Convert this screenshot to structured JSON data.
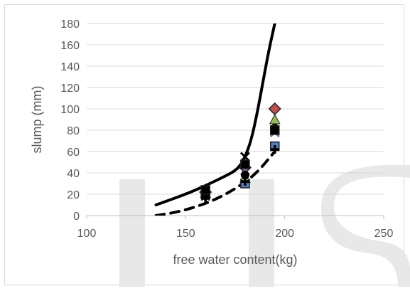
{
  "chart_data": {
    "type": "scatter",
    "title": "",
    "xlabel": "free water content(kg)",
    "ylabel": "slump (mm)",
    "xlim": [
      100,
      250
    ],
    "ylim": [
      0,
      180
    ],
    "x_ticks": [
      "100",
      "150",
      "200",
      "250"
    ],
    "y_ticks": [
      "0",
      "20",
      "40",
      "60",
      "80",
      "100",
      "120",
      "140",
      "160",
      "180"
    ],
    "grid": "horizontal",
    "legend": "none",
    "lines": [
      {
        "style": "solid",
        "color": "#000000",
        "points": [
          [
            135,
            10
          ],
          [
            150,
            20
          ],
          [
            160,
            28
          ],
          [
            170,
            37
          ],
          [
            175,
            42
          ],
          [
            178,
            48
          ],
          [
            180,
            55
          ],
          [
            183,
            70
          ],
          [
            186,
            95
          ],
          [
            189,
            125
          ],
          [
            192,
            155
          ],
          [
            195,
            180
          ]
        ]
      },
      {
        "style": "dashed",
        "color": "#000000",
        "points": [
          [
            135,
            0
          ],
          [
            145,
            3
          ],
          [
            155,
            8
          ],
          [
            165,
            15
          ],
          [
            175,
            25
          ],
          [
            185,
            38
          ],
          [
            195,
            60
          ]
        ]
      }
    ],
    "series": [
      {
        "marker": "square",
        "color": "#4f81bd",
        "x": [
          160,
          180,
          195
        ],
        "y": [
          20,
          30,
          65
        ]
      },
      {
        "marker": "diamond",
        "color": "#c0504d",
        "x": [
          160,
          180,
          195
        ],
        "y": [
          22,
          45,
          100
        ]
      },
      {
        "marker": "triangle",
        "color": "#9bbb59",
        "x": [
          160,
          180,
          195
        ],
        "y": [
          21,
          35,
          90
        ]
      },
      {
        "marker": "x",
        "color": "#8064a2",
        "x": [
          160,
          180,
          195
        ],
        "y": [
          18,
          42,
          78
        ]
      },
      {
        "marker": "x",
        "color": "#000000",
        "x": [
          160,
          180,
          195
        ],
        "y": [
          23,
          55,
          80
        ]
      },
      {
        "marker": "circle",
        "color": "#000000",
        "x": [
          160,
          180,
          195
        ],
        "y": [
          19,
          38,
          82
        ]
      },
      {
        "marker": "plus",
        "color": "#000000",
        "x": [
          160,
          180,
          195
        ],
        "y": [
          16,
          32,
          62
        ]
      },
      {
        "marker": "square",
        "color": "#000000",
        "x": [
          160,
          180,
          195
        ],
        "y": [
          24,
          48,
          80
        ]
      }
    ]
  }
}
